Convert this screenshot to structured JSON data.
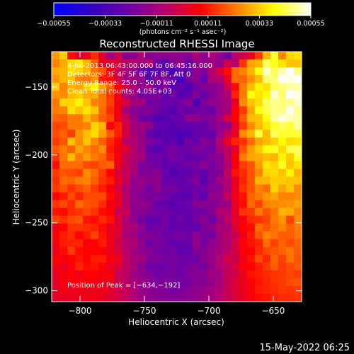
{
  "chart_data": {
    "type": "heatmap",
    "title": "Reconstructed RHESSI Image",
    "xlabel": "Heliocentric X (arcsec)",
    "ylabel": "Heliocentric Y (arcsec)",
    "xlim": [
      -822,
      -628
    ],
    "ylim": [
      -308,
      -124
    ],
    "xticks": [
      -800,
      -750,
      -700,
      -650
    ],
    "yticks": [
      -300,
      -250,
      -200,
      -150
    ],
    "xtick_labels": [
      "−800",
      "−750",
      "−700",
      "−650"
    ],
    "ytick_labels": [
      "−300",
      "−250",
      "−200",
      "−150"
    ],
    "colorbar": {
      "range": [
        -0.00055,
        0.00055
      ],
      "ticks": [
        -0.00055,
        -0.00033,
        -0.00011,
        0.00011,
        0.00033,
        0.00055
      ],
      "tick_labels": [
        "−0.00055",
        "−0.00033",
        "−0.00011",
        "0.00011",
        "0.00033",
        "0.00055"
      ],
      "unit_label": "(photons cm⁻² s⁻¹ asec⁻²)",
      "colormap": [
        "#0000ff",
        "#3000c0",
        "#6a00a8",
        "#b40070",
        "#ff0000",
        "#ff8000",
        "#ffff00",
        "#ffffff"
      ]
    },
    "annotations": [
      "4‑Jul‑2013 06:43:00.000 to 06:45:16.000",
      "Detectors: 3F 4F 5F 6F 7F 8F, Att 0",
      "Energy Range: 25.0 – 50.0 keV",
      "Clean    Total counts: 4.05E+03"
    ],
    "peak_label": "Position of Peak = [−634,−192]",
    "peak": {
      "x": -634,
      "y": -192
    },
    "values": [
      [
        0.00027,
        0.00033,
        9e-05,
        1e-05,
        4e-05,
        0.00013,
        1e-05,
        -0.00011,
        -3e-05,
        -0.00017,
        -0.00017,
        -9e-05,
        -0.00018,
        -0.00016,
        -0.00017,
        -0.00015,
        -0.00016,
        -0.00017,
        -0.0001,
        -0.00016,
        -0.0001,
        -0.00015,
        -0.00024,
        -6e-05,
        -3e-05,
        4e-05,
        0.00015,
        0.0003,
        0.00041,
        0.00024,
        0.00034,
        0.00036
      ],
      [
        0.00024,
        0.00029,
        0.00035,
        0.00037,
        0.0003,
        0.00019,
        3e-05,
        1e-05,
        0.0,
        -5e-05,
        -7e-05,
        -0.00012,
        -6e-05,
        -0.00023,
        -0.00028,
        -0.00018,
        -0.00014,
        -0.00025,
        -0.00016,
        -0.00016,
        -0.00011,
        -0.00015,
        -3e-05,
        -9e-05,
        0.00014,
        0.00028,
        0.0003,
        0.00045,
        0.00041,
        0.00036,
        0.00032,
        0.00032
      ],
      [
        0.00029,
        0.0003,
        0.00036,
        0.00034,
        0.0003,
        0.00022,
        0.00018,
        6e-05,
        -4e-05,
        -0.0001,
        -0.00015,
        -0.00024,
        -0.00031,
        -0.00028,
        -0.00027,
        -0.00032,
        -0.00024,
        -0.00025,
        -0.00016,
        -0.00019,
        -8e-05,
        0.0,
        9e-05,
        0.00021,
        0.00024,
        0.0003,
        0.0004,
        0.00052,
        0.00045,
        0.0005,
        0.00056,
        0.00047
      ],
      [
        0.00026,
        0.0003,
        0.00032,
        0.00024,
        0.00022,
        0.00026,
        0.00011,
        9e-05,
        -2e-05,
        -0.00012,
        -0.00012,
        -0.00016,
        -0.00029,
        -0.00019,
        -0.00019,
        -0.00023,
        -0.00035,
        -0.00021,
        -0.00017,
        -0.00025,
        -9e-05,
        -8e-05,
        3e-05,
        0.00021,
        0.0002,
        0.00026,
        0.00031,
        0.00046,
        0.00047,
        0.00055,
        0.00053,
        0.00059
      ],
      [
        0.00033,
        0.00024,
        0.0003,
        0.00028,
        0.00034,
        0.00038,
        0.00027,
        0.00019,
        7e-05,
        -3e-05,
        -0.0001,
        -0.00017,
        -0.00011,
        -0.00025,
        -0.00018,
        -0.00028,
        -0.00026,
        -0.00031,
        -0.00023,
        -0.00019,
        -0.00017,
        -0.00016,
        -3e-05,
        9e-05,
        0.00023,
        0.00031,
        0.00038,
        0.00036,
        0.00045,
        0.00047,
        0.00049,
        0.00049
      ],
      [
        0.00026,
        0.00025,
        0.00031,
        0.00033,
        0.00029,
        0.00029,
        0.00022,
        0.00015,
        5e-05,
        -0.0001,
        -0.00013,
        -0.00021,
        -0.0002,
        -0.00019,
        -0.00028,
        -0.00022,
        -0.00028,
        -0.00026,
        -0.00019,
        -0.00024,
        -0.00019,
        -0.00013,
        -8e-05,
        0.00012,
        0.00023,
        0.0004,
        0.00036,
        0.00039,
        0.00052,
        0.00046,
        0.00059,
        0.00053
      ],
      [
        0.00022,
        0.00034,
        0.00034,
        0.00038,
        0.00032,
        0.00024,
        0.00022,
        0.00016,
        5e-05,
        -1e-05,
        -0.00011,
        -0.00011,
        -0.00022,
        -0.00021,
        -0.00025,
        -0.00025,
        -0.00022,
        -0.00017,
        -0.00031,
        -0.0002,
        -0.00015,
        -0.00014,
        -0.00011,
        3e-05,
        0.00025,
        0.00032,
        0.00035,
        0.00045,
        0.00048,
        0.00047,
        0.00048,
        0.00052
      ],
      [
        0.00023,
        0.00024,
        0.00036,
        0.00032,
        0.00036,
        0.00032,
        0.00021,
        0.00013,
        5e-05,
        -0.00011,
        -0.00018,
        -0.00019,
        -0.00018,
        -0.00022,
        -0.00026,
        -0.0003,
        -0.00023,
        -0.00025,
        -0.00022,
        -0.00021,
        -0.00025,
        -0.00014,
        -0.00011,
        8e-05,
        0.00015,
        0.00028,
        0.0004,
        0.00044,
        0.00048,
        0.00047,
        0.00054,
        0.00048
      ],
      [
        0.0002,
        0.00019,
        0.00023,
        0.00023,
        0.0003,
        0.00025,
        0.00019,
        0.00016,
        4e-05,
        -4e-05,
        -0.00013,
        -0.00022,
        -0.00024,
        -0.0003,
        -0.00029,
        -0.00025,
        -0.00025,
        -0.00016,
        -0.00016,
        -0.0002,
        -0.00018,
        -0.00012,
        -1e-05,
        8e-05,
        0.00019,
        0.00031,
        0.00032,
        0.0004,
        0.00049,
        0.00053,
        0.00051,
        0.00049
      ],
      [
        0.00016,
        0.00017,
        0.00023,
        0.00023,
        0.00024,
        0.00034,
        0.0003,
        7e-05,
        0.00012,
        -2e-05,
        -0.00011,
        -0.00012,
        -0.00016,
        -0.00026,
        -0.00026,
        -0.00029,
        -0.00026,
        -0.00026,
        -0.00024,
        -0.00024,
        -0.00019,
        -0.00016,
        -0.00015,
        2e-05,
        0.00015,
        0.00025,
        0.00031,
        0.00036,
        0.00042,
        0.00045,
        0.00043,
        0.00049
      ],
      [
        0.00017,
        0.0002,
        0.00015,
        0.00026,
        0.00031,
        0.00035,
        0.00027,
        0.00019,
        0.00012,
        -1e-05,
        -0.00011,
        -0.00014,
        -0.00024,
        -0.0003,
        -0.00027,
        -0.00029,
        -0.00032,
        -0.00031,
        -0.00024,
        -0.00025,
        -0.00024,
        -0.00014,
        -5e-05,
        4e-05,
        0.00025,
        0.0003,
        0.00043,
        0.00031,
        0.00045,
        0.00042,
        0.00042,
        0.00043
      ],
      [
        0.00015,
        0.00018,
        0.00032,
        0.00025,
        0.00032,
        0.00025,
        0.00019,
        0.00013,
        8e-05,
        -7e-05,
        -8e-05,
        -0.00014,
        -0.00019,
        -0.00023,
        -0.00028,
        -0.00026,
        -0.00031,
        -0.00022,
        -0.00024,
        -0.00017,
        -0.00021,
        -9e-05,
        3e-05,
        0.00012,
        0.00014,
        0.00021,
        0.00028,
        0.00031,
        0.00034,
        0.00039,
        0.00035,
        0.00036
      ],
      [
        0.00019,
        0.00023,
        0.0002,
        0.00028,
        0.00024,
        0.00021,
        0.00025,
        0.00011,
        5e-05,
        1e-05,
        -7e-05,
        -0.00013,
        -0.00024,
        -0.00029,
        -0.00024,
        -0.0002,
        -0.00023,
        -0.00023,
        -0.0002,
        -0.00021,
        -0.00022,
        -0.00011,
        -6e-05,
        2e-05,
        0.00018,
        0.00027,
        0.00033,
        0.0004,
        0.00041,
        0.00035,
        0.00044,
        0.00045
      ],
      [
        0.00014,
        0.00022,
        0.00031,
        0.00023,
        0.00027,
        0.00023,
        0.0002,
        0.00013,
        6e-05,
        -4e-05,
        -8e-05,
        -0.00011,
        -0.00022,
        -0.00022,
        -0.00024,
        -0.0002,
        -0.00023,
        -0.00026,
        -0.00024,
        -0.00023,
        -0.00018,
        -0.00017,
        -6e-05,
        7e-05,
        0.00023,
        0.00028,
        0.00029,
        0.00031,
        0.0003,
        0.00038,
        0.00033,
        0.00041
      ],
      [
        9e-05,
        0.00021,
        0.00021,
        0.00021,
        0.00017,
        0.00016,
        0.00019,
        0.0002,
        4e-05,
        -4e-05,
        -0.0001,
        -0.00019,
        -0.0002,
        -0.00023,
        -0.00026,
        -0.00026,
        -0.00025,
        -0.00022,
        -0.00021,
        -0.00016,
        -0.00021,
        -0.00016,
        -9e-05,
        6e-05,
        0.00015,
        0.00018,
        0.00027,
        0.00036,
        0.00034,
        0.00041,
        0.00032,
        0.00036
      ],
      [
        0.00015,
        0.00018,
        0.00017,
        0.00016,
        0.00025,
        0.00021,
        0.00015,
        8e-05,
        0.0,
        -5e-05,
        -0.0001,
        -0.00019,
        -0.00019,
        -0.00017,
        -0.00023,
        -0.0003,
        -0.00027,
        -0.00026,
        -0.00022,
        -0.00026,
        -0.0002,
        -0.00018,
        -6e-05,
        0.0001,
        0.00013,
        0.00018,
        0.00024,
        0.00034,
        0.00035,
        0.00032,
        0.00038,
        0.0003
      ],
      [
        0.00013,
        0.00021,
        0.0002,
        0.00023,
        0.00024,
        0.00019,
        0.00014,
        0.00011,
        3e-05,
        -4e-05,
        -0.00015,
        -0.00014,
        -0.00017,
        -0.00015,
        -0.00025,
        -0.00024,
        -0.00026,
        -0.00022,
        -0.00019,
        -0.00029,
        -0.0002,
        -0.00012,
        -8e-05,
        3e-05,
        0.00012,
        0.00018,
        0.0003,
        0.0003,
        0.00033,
        0.00033,
        0.00032,
        0.00032
      ],
      [
        0.00015,
        0.00018,
        0.00014,
        0.00017,
        0.0002,
        0.00015,
        0.00011,
        6e-05,
        0.0,
        -9e-05,
        -0.00015,
        -0.00016,
        -0.00022,
        -0.00016,
        -0.00021,
        -0.0002,
        -0.00024,
        -0.00025,
        -0.00023,
        -0.00022,
        -0.00018,
        -0.00017,
        -9e-05,
        4e-05,
        0.00014,
        0.00018,
        0.00024,
        0.00021,
        0.00034,
        0.00028,
        0.00032,
        0.00025
      ],
      [
        8e-05,
        0.00011,
        0.00017,
        0.00012,
        0.00017,
        0.00017,
        0.00017,
        9e-05,
        2e-05,
        -7e-05,
        -0.00015,
        -0.00018,
        -0.0002,
        -0.0002,
        -0.00022,
        -0.00025,
        -0.00027,
        -0.00027,
        -0.00021,
        -0.00026,
        -0.00016,
        -0.00015,
        -5e-05,
        4e-05,
        0.0001,
        0.0002,
        0.00023,
        0.00026,
        0.00028,
        0.00024,
        0.00024,
        0.00025
      ],
      [
        0.00014,
        0.00017,
        0.00013,
        0.00021,
        0.00018,
        0.00017,
        0.00013,
        5e-05,
        3e-05,
        -7e-05,
        -0.00016,
        -0.00015,
        -0.00017,
        -0.00025,
        -0.00025,
        -0.00029,
        -0.00025,
        -0.00023,
        -0.00019,
        -0.00017,
        -0.00018,
        -0.00015,
        -0.00013,
        3e-05,
        9e-05,
        0.00021,
        0.00016,
        0.00024,
        0.00025,
        0.00025,
        0.00026,
        0.00028
      ],
      [
        0.0001,
        9e-05,
        0.00013,
        0.00014,
        0.00017,
        0.00014,
        9e-05,
        8e-05,
        -4e-05,
        -4e-05,
        -0.00017,
        -0.00017,
        -0.0002,
        -0.00021,
        -0.00022,
        -0.00024,
        -0.00025,
        -0.00025,
        -0.00022,
        -0.00023,
        -0.00018,
        -8e-05,
        -8e-05,
        3e-05,
        0.00014,
        0.00015,
        0.00023,
        0.00018,
        0.00022,
        0.0003,
        0.00029,
        0.00024
      ],
      [
        0.00016,
        0.00014,
        0.00017,
        0.00018,
        0.0001,
        9e-05,
        0.00013,
        0.0001,
        0.0,
        -9e-05,
        -0.00015,
        -0.00022,
        -0.00024,
        -0.00026,
        -0.00021,
        -0.00027,
        -0.00023,
        -0.00026,
        -0.00021,
        -0.00017,
        -0.00023,
        -0.00014,
        -6e-05,
        2e-05,
        6e-05,
        0.00013,
        0.00014,
        0.00016,
        0.00023,
        0.00026,
        0.00016,
        0.00025
      ],
      [
        5e-05,
        8e-05,
        0.00014,
        0.00014,
        0.00013,
        0.00012,
        9e-05,
        3e-05,
        1e-05,
        -8e-05,
        -0.0001,
        -0.00016,
        -0.00024,
        -0.00022,
        -0.00021,
        -0.00027,
        -0.00024,
        -0.00025,
        -0.00026,
        -0.0002,
        -0.00017,
        -0.0001,
        -0.00011,
        1e-05,
        8e-05,
        9e-05,
        0.00021,
        0.00018,
        0.00021,
        0.00024,
        0.0002,
        0.00023
      ],
      [
        8e-05,
        0.00011,
        0.00013,
        8e-05,
        0.00011,
        0.00016,
        0.0001,
        4e-05,
        0.0,
        -0.0001,
        -0.00012,
        -0.00019,
        -0.00018,
        -0.0002,
        -0.00023,
        -0.00022,
        -0.00021,
        -0.00022,
        -0.00016,
        -0.00021,
        -0.00022,
        -0.00012,
        -7e-05,
        -4e-05,
        5e-05,
        0.00011,
        0.00018,
        0.00024,
        0.00022,
        0.00019,
        0.00019,
        0.00022
      ],
      [
        6e-05,
        0.00011,
        0.00012,
        0.00012,
        7e-05,
        8e-05,
        0.00011,
        4e-05,
        -2e-05,
        -8e-05,
        -9e-05,
        -0.00015,
        -0.00023,
        -0.0002,
        -0.00021,
        -0.00026,
        -0.00025,
        -0.00025,
        -0.00015,
        -0.00021,
        -0.00015,
        -0.00012,
        -9e-05,
        -1e-05,
        7e-05,
        0.0001,
        0.00012,
        0.00021,
        0.00016,
        0.0002,
        0.00017,
        0.0002
      ],
      [
        4e-05,
        9e-05,
        0.00015,
        9e-05,
        8e-05,
        8e-05,
        7e-05,
        4e-05,
        0.0,
        -6e-05,
        -0.00012,
        -0.00016,
        -0.00017,
        -0.00021,
        -0.00022,
        -0.00021,
        -0.00027,
        -0.00025,
        -0.00019,
        -0.00018,
        -0.00014,
        -0.00011,
        -7e-05,
        -1e-05,
        6e-05,
        8e-05,
        0.00013,
        0.00017,
        0.00018,
        0.0002,
        0.00022,
        0.00019
      ],
      [
        8e-05,
        6e-05,
        8e-05,
        0.0001,
        8e-05,
        0.00011,
        0.00011,
        6e-05,
        4e-05,
        -6e-05,
        -0.0001,
        -0.00011,
        -0.00018,
        -0.00019,
        -0.00021,
        -0.00021,
        -0.00022,
        -0.00023,
        -0.00022,
        -0.00017,
        -0.00015,
        -9e-05,
        -2e-05,
        -3e-05,
        5e-05,
        0.0001,
        0.00017,
        0.00012,
        0.0002,
        0.00016,
        0.00022,
        0.00018
      ],
      [
        6e-05,
        4e-05,
        7e-05,
        0.00012,
        9e-05,
        0.0001,
        8e-05,
        3e-05,
        0.0,
        -5e-05,
        -0.0001,
        -0.00017,
        -0.00023,
        -0.00022,
        -0.00023,
        -0.0002,
        -0.00023,
        -0.0002,
        -0.00019,
        -0.00021,
        -0.00015,
        -8e-05,
        -6e-05,
        0.0,
        6e-05,
        8e-05,
        0.00011,
        0.00015,
        0.00019,
        0.00015,
        0.00017,
        0.00019
      ],
      [
        3e-05,
        6e-05,
        7e-05,
        5e-05,
        8e-05,
        8e-05,
        6e-05,
        6e-05,
        -4e-05,
        -6e-05,
        -0.00013,
        -0.00016,
        -0.00018,
        -0.00023,
        -0.00021,
        -0.0002,
        -0.00023,
        -0.00019,
        -0.00018,
        -0.00017,
        -0.00012,
        -0.00012,
        -4e-05,
        -2e-05,
        4e-05,
        0.0001,
        0.00011,
        0.00013,
        0.00014,
        0.00015,
        0.00016,
        0.00015
      ],
      [
        2e-05,
        6e-05,
        6e-05,
        7e-05,
        6e-05,
        5e-05,
        4e-05,
        3e-05,
        -2e-05,
        -7e-05,
        -0.0001,
        -0.00013,
        -0.00017,
        -0.0002,
        -0.0002,
        -0.00021,
        -0.00021,
        -0.00021,
        -0.00017,
        -0.00018,
        -0.00015,
        -0.0001,
        -4e-05,
        1e-05,
        4e-05,
        8e-05,
        0.0001,
        0.00012,
        0.00014,
        0.00015,
        0.00017,
        0.00018
      ],
      [
        3e-05,
        5e-05,
        4e-05,
        5e-05,
        4e-05,
        5e-05,
        5e-05,
        2e-05,
        -2e-05,
        -5e-05,
        -9e-05,
        -0.00014,
        -0.00017,
        -0.00018,
        -0.00019,
        -0.00021,
        -0.0002,
        -0.00018,
        -0.00016,
        -0.00015,
        -0.00012,
        -8e-05,
        -4e-05,
        1e-05,
        3e-05,
        7e-05,
        0.00011,
        0.00012,
        0.00013,
        0.00015,
        0.00014,
        0.00015
      ],
      [
        2e-05,
        3e-05,
        4e-05,
        4e-05,
        5e-05,
        5e-05,
        3e-05,
        1e-05,
        -1e-05,
        -5e-05,
        -9e-05,
        -0.00012,
        -0.00016,
        -0.00017,
        -0.00018,
        -0.00019,
        -0.00018,
        -0.00017,
        -0.00016,
        -0.00013,
        -0.00011,
        -8e-05,
        -4e-05,
        0.0,
        3e-05,
        6e-05,
        9e-05,
        0.0001,
        0.00012,
        0.00013,
        0.00013,
        0.00014
      ]
    ]
  },
  "footer": {
    "timestamp": "15‑May‑2022 06:25"
  }
}
